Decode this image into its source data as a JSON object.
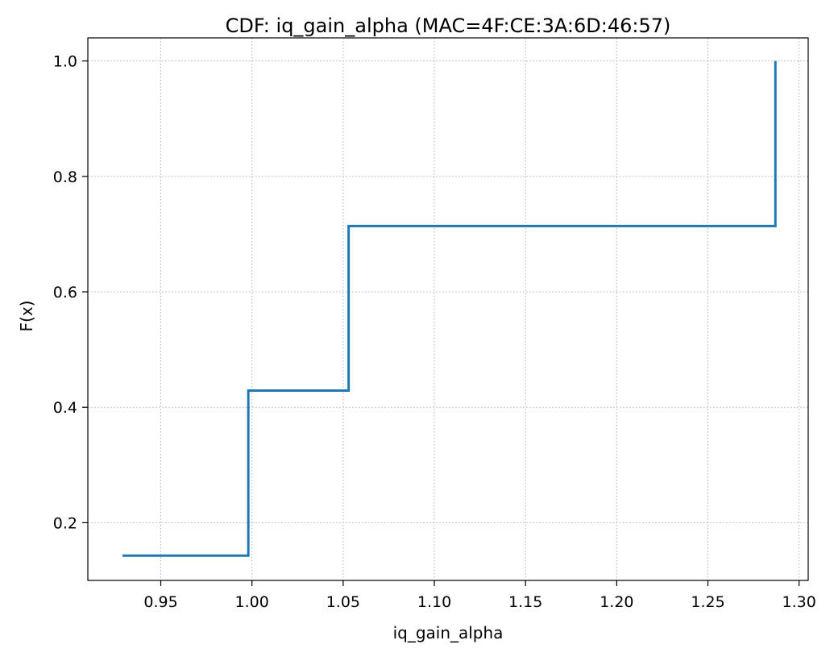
{
  "chart_data": {
    "type": "line",
    "drawstyle": "steps-post",
    "title": "CDF: iq_gain_alpha (MAC=4F:CE:3A:6D:46:57)",
    "xlabel": "iq_gain_alpha",
    "ylabel": "F(x)",
    "xlim": [
      0.91,
      1.305
    ],
    "ylim": [
      0.1,
      1.04
    ],
    "xticks": [
      0.95,
      1.0,
      1.05,
      1.1,
      1.15,
      1.2,
      1.25,
      1.3
    ],
    "xtick_labels": [
      "0.95",
      "1.00",
      "1.05",
      "1.10",
      "1.15",
      "1.20",
      "1.25",
      "1.30"
    ],
    "yticks": [
      0.2,
      0.4,
      0.6,
      0.8,
      1.0
    ],
    "ytick_labels": [
      "0.2",
      "0.4",
      "0.6",
      "0.8",
      "1.0"
    ],
    "grid": true,
    "series": [
      {
        "color": "#1f77b4",
        "x": [
          0.929,
          0.998,
          1.053,
          1.287
        ],
        "y": [
          0.143,
          0.429,
          0.714,
          1.0
        ]
      }
    ]
  }
}
